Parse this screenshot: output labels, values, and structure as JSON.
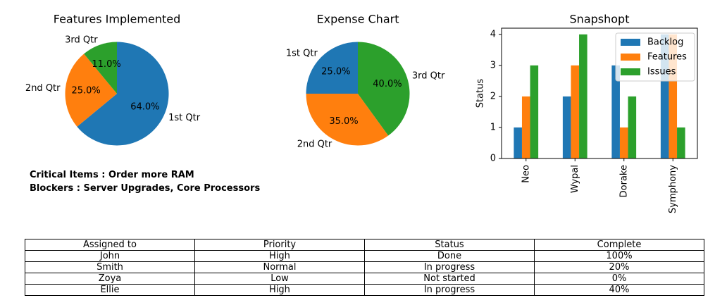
{
  "colors": {
    "blue": "#1f77b4",
    "orange": "#ff7f0e",
    "green": "#2ca02c"
  },
  "chart_data": [
    {
      "type": "pie",
      "title": "Features Implemented",
      "labels": [
        "1st Qtr",
        "2nd Qtr",
        "3rd Qtr"
      ],
      "values": [
        64.0,
        25.0,
        11.0
      ],
      "value_labels": [
        "64.0%",
        "25.0%",
        "11.0%"
      ],
      "start_angle_deg": 90,
      "direction": "clockwise"
    },
    {
      "type": "pie",
      "title": "Expense Chart",
      "labels": [
        "1st Qtr",
        "2nd Qtr",
        "3rd Qtr"
      ],
      "values": [
        25.0,
        35.0,
        40.0
      ],
      "value_labels": [
        "25.0%",
        "35.0%",
        "40.0%"
      ],
      "start_angle_deg": 90,
      "direction": "counterclockwise"
    },
    {
      "type": "bar",
      "title": "Snapshopt",
      "xlabel": "",
      "ylabel": "Status",
      "categories": [
        "Neo",
        "Wypal",
        "Dorake",
        "Symphony"
      ],
      "series": [
        {
          "name": "Backlog",
          "values": [
            1,
            2,
            3,
            4
          ]
        },
        {
          "name": "Features",
          "values": [
            2,
            3,
            1,
            4
          ]
        },
        {
          "name": "Issues",
          "values": [
            3,
            4,
            2,
            1
          ]
        }
      ],
      "ylim": [
        0,
        4.2
      ],
      "yticks": [
        0,
        1,
        2,
        3,
        4
      ],
      "legend": "top-right",
      "grid": false
    }
  ],
  "notes": {
    "critical": "Critical Items : Order more RAM",
    "blockers": "Blockers : Server Upgrades, Core Processors"
  },
  "table": {
    "headers": [
      "Assigned to",
      "Priority",
      "Status",
      "Complete"
    ],
    "rows": [
      [
        "John",
        "High",
        "Done",
        "100%"
      ],
      [
        "Smith",
        "Normal",
        "In progress",
        "20%"
      ],
      [
        "Zoya",
        "Low",
        "Not started",
        "0%"
      ],
      [
        "Ellie",
        "High",
        "In progress",
        "40%"
      ]
    ]
  }
}
